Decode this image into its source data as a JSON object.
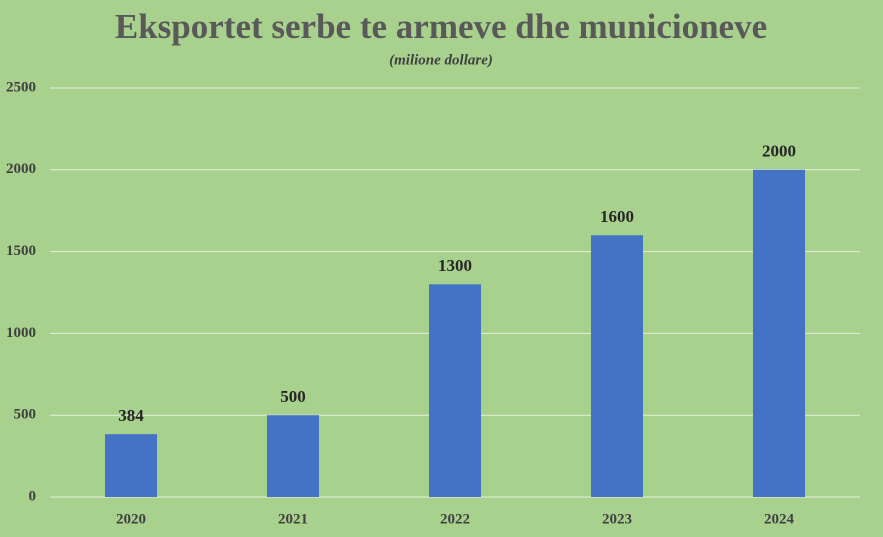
{
  "chart_data": {
    "type": "bar",
    "title": "Eksportet serbe te armeve dhe municioneve",
    "subtitle": "(milione dollare)",
    "categories": [
      "2020",
      "2021",
      "2022",
      "2023",
      "2024"
    ],
    "values": [
      384,
      500,
      1300,
      1600,
      2000
    ],
    "color": "#4472c4",
    "ylim": [
      0,
      2500
    ],
    "yticks": [
      0,
      500,
      1000,
      1500,
      2000,
      2500
    ],
    "grid": true,
    "data_labels": true
  }
}
